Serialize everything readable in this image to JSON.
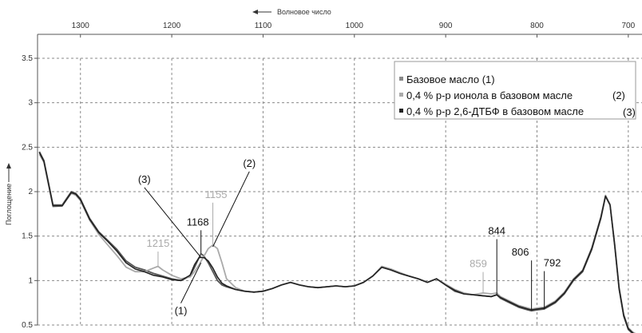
{
  "chart_data": {
    "type": "line",
    "xlabel": "Волновое число",
    "ylabel": "Поглощение",
    "x_direction": "descending",
    "xlim": [
      1347,
      685
    ],
    "ylim": [
      0.5,
      3.5
    ],
    "x_ticks": [
      "1300",
      "1200",
      "1100",
      "1000",
      "900",
      "800",
      "700"
    ],
    "y_ticks": [
      "0.5",
      "1",
      "1.5",
      "2",
      "2.5",
      "3",
      "3.5"
    ],
    "grid": "dashed",
    "legend_position": "top-right",
    "series": [
      {
        "name": "Базовое масло (1)",
        "color": "#555555",
        "x": [
          1345,
          1340,
          1330,
          1320,
          1310,
          1305,
          1300,
          1290,
          1280,
          1270,
          1260,
          1250,
          1240,
          1230,
          1220,
          1210,
          1200,
          1190,
          1180,
          1175,
          1170,
          1168,
          1165,
          1160,
          1155,
          1150,
          1145,
          1140,
          1130,
          1120,
          1110,
          1100,
          1090,
          1080,
          1070,
          1060,
          1050,
          1040,
          1030,
          1020,
          1010,
          1000,
          990,
          980,
          970,
          960,
          950,
          940,
          930,
          920,
          910,
          900,
          890,
          880,
          870,
          860,
          850,
          844,
          840,
          830,
          820,
          810,
          806,
          800,
          792,
          780,
          770,
          760,
          750,
          740,
          730,
          725,
          720,
          715,
          710,
          705,
          700,
          695,
          690,
          686
        ],
        "values": [
          2.45,
          2.35,
          1.85,
          1.85,
          2.0,
          1.98,
          1.92,
          1.7,
          1.55,
          1.45,
          1.35,
          1.22,
          1.15,
          1.12,
          1.08,
          1.05,
          1.02,
          1.0,
          1.05,
          1.15,
          1.26,
          1.3,
          1.28,
          1.2,
          1.1,
          1.0,
          0.95,
          0.93,
          0.9,
          0.88,
          0.87,
          0.88,
          0.91,
          0.95,
          0.98,
          0.95,
          0.93,
          0.92,
          0.93,
          0.94,
          0.93,
          0.94,
          0.98,
          1.05,
          1.15,
          1.12,
          1.08,
          1.05,
          1.02,
          0.98,
          1.02,
          0.95,
          0.88,
          0.85,
          0.84,
          0.83,
          0.82,
          0.84,
          0.8,
          0.75,
          0.7,
          0.67,
          0.66,
          0.67,
          0.68,
          0.75,
          0.85,
          1.0,
          1.1,
          1.35,
          1.7,
          1.95,
          1.85,
          1.4,
          0.9,
          0.6,
          0.45,
          0.4,
          0.38,
          0.36
        ]
      },
      {
        "name": "0,4 % р-р ионола в базовом масле",
        "color": "#aaaaaa",
        "x": [
          1345,
          1340,
          1330,
          1320,
          1310,
          1305,
          1300,
          1290,
          1280,
          1270,
          1260,
          1250,
          1240,
          1230,
          1220,
          1215,
          1210,
          1200,
          1190,
          1180,
          1175,
          1170,
          1165,
          1160,
          1155,
          1150,
          1145,
          1140,
          1130,
          1120,
          1110,
          1100,
          1090,
          1080,
          1070,
          1060,
          1050,
          1040,
          1030,
          1020,
          1010,
          1000,
          990,
          980,
          970,
          960,
          950,
          940,
          930,
          920,
          910,
          900,
          890,
          880,
          870,
          859,
          850,
          844,
          840,
          830,
          820,
          810,
          806,
          800,
          792,
          780,
          770,
          760,
          750,
          740,
          730,
          725,
          720,
          715,
          710,
          705,
          700,
          695,
          690,
          686
        ],
        "values": [
          2.42,
          2.33,
          1.83,
          1.84,
          1.98,
          1.96,
          1.9,
          1.68,
          1.52,
          1.4,
          1.28,
          1.15,
          1.1,
          1.1,
          1.14,
          1.16,
          1.12,
          1.06,
          1.02,
          1.04,
          1.1,
          1.18,
          1.27,
          1.36,
          1.4,
          1.36,
          1.2,
          1.02,
          0.92,
          0.88,
          0.87,
          0.88,
          0.91,
          0.95,
          0.98,
          0.95,
          0.93,
          0.92,
          0.93,
          0.94,
          0.93,
          0.94,
          0.98,
          1.05,
          1.16,
          1.13,
          1.09,
          1.05,
          1.02,
          0.98,
          1.02,
          0.96,
          0.9,
          0.86,
          0.84,
          0.86,
          0.85,
          0.86,
          0.82,
          0.77,
          0.72,
          0.69,
          0.68,
          0.69,
          0.7,
          0.77,
          0.87,
          1.02,
          1.12,
          1.37,
          1.72,
          1.96,
          1.86,
          1.42,
          0.92,
          0.62,
          0.47,
          0.42,
          0.39,
          0.37
        ]
      },
      {
        "name": "0,4 % р-р 2,6-ДТБФ в базовом масле",
        "color": "#222222",
        "x": [
          1345,
          1340,
          1330,
          1320,
          1310,
          1305,
          1300,
          1290,
          1280,
          1270,
          1260,
          1250,
          1240,
          1230,
          1220,
          1210,
          1200,
          1190,
          1180,
          1175,
          1170,
          1165,
          1160,
          1155,
          1150,
          1145,
          1140,
          1130,
          1120,
          1110,
          1100,
          1090,
          1080,
          1070,
          1060,
          1050,
          1040,
          1030,
          1020,
          1010,
          1000,
          990,
          980,
          970,
          960,
          950,
          940,
          930,
          920,
          910,
          900,
          890,
          880,
          870,
          860,
          850,
          844,
          840,
          830,
          820,
          810,
          806,
          800,
          792,
          780,
          770,
          760,
          750,
          740,
          730,
          725,
          720,
          715,
          710,
          705,
          700,
          695,
          690,
          686
        ],
        "values": [
          2.44,
          2.34,
          1.84,
          1.84,
          1.99,
          1.97,
          1.91,
          1.69,
          1.54,
          1.44,
          1.33,
          1.2,
          1.13,
          1.1,
          1.06,
          1.04,
          1.01,
          1.0,
          1.06,
          1.18,
          1.26,
          1.26,
          1.22,
          1.14,
          1.04,
          0.97,
          0.94,
          0.9,
          0.88,
          0.87,
          0.88,
          0.91,
          0.95,
          0.98,
          0.95,
          0.93,
          0.92,
          0.93,
          0.94,
          0.93,
          0.94,
          0.98,
          1.05,
          1.15,
          1.12,
          1.08,
          1.05,
          1.02,
          0.98,
          1.02,
          0.95,
          0.89,
          0.85,
          0.84,
          0.83,
          0.82,
          0.84,
          0.81,
          0.76,
          0.71,
          0.68,
          0.67,
          0.68,
          0.69,
          0.76,
          0.86,
          1.01,
          1.11,
          1.36,
          1.71,
          1.95,
          1.85,
          1.41,
          0.91,
          0.61,
          0.46,
          0.41,
          0.38,
          0.36
        ]
      }
    ],
    "legend": [
      {
        "label": "Базовое масло (1)",
        "marker_color": "#888888",
        "suffix": ""
      },
      {
        "label": "0,4 % р-р ионола в базовом масле",
        "marker_color": "#aaaaaa",
        "suffix": "(2)"
      },
      {
        "label": "0,4 % р-р 2,6-ДТБФ в базовом масле",
        "marker_color": "#222222",
        "suffix": "(3)"
      }
    ],
    "annotations": [
      {
        "text": "1215",
        "x": 1215,
        "y": 1.15,
        "color": "#aaaaaa"
      },
      {
        "text": "1155",
        "x": 1155,
        "y": 1.4,
        "color": "#aaaaaa"
      },
      {
        "text": "1168",
        "x": 1168,
        "y": 1.3,
        "color": "#111111"
      },
      {
        "text": "859",
        "x": 859,
        "y": 0.86,
        "color": "#aaaaaa"
      },
      {
        "text": "844",
        "x": 844,
        "y": 0.84,
        "color": "#111111"
      },
      {
        "text": "806",
        "x": 806,
        "y": 0.67,
        "color": "#111111"
      },
      {
        "text": "792",
        "x": 792,
        "y": 0.68,
        "color": "#111111"
      }
    ],
    "curve_labels": [
      {
        "text": "(1)",
        "x": 1168,
        "y": 1.2
      },
      {
        "text": "(2)",
        "x": 1155,
        "y": 1.38
      },
      {
        "text": "(3)",
        "x": 1168,
        "y": 1.26
      }
    ]
  }
}
